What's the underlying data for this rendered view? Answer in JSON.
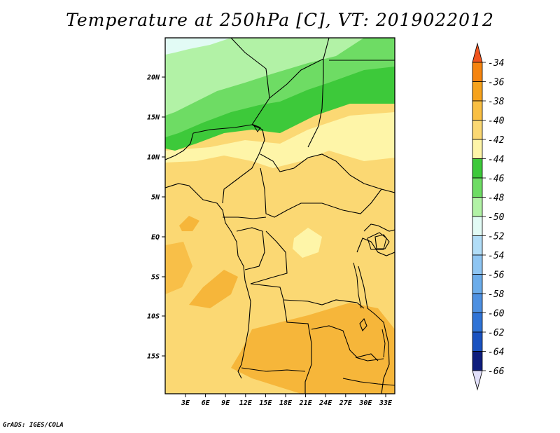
{
  "title": "Temperature at 250hPa [C], VT: 2019022012",
  "credit": "GrADS: IGES/COLA",
  "map": {
    "lat_ticks": [
      "20N",
      "15N",
      "10N",
      "5N",
      "EQ",
      "5S",
      "10S",
      "15S"
    ],
    "lon_ticks": [
      "3E",
      "6E",
      "9E",
      "12E",
      "15E",
      "18E",
      "21E",
      "24E",
      "27E",
      "30E",
      "33E"
    ]
  },
  "colorbar": {
    "labels": [
      "-34",
      "-36",
      "-38",
      "-40",
      "-42",
      "-44",
      "-46",
      "-48",
      "-50",
      "-52",
      "-54",
      "-56",
      "-58",
      "-60",
      "-62",
      "-64",
      "-66"
    ],
    "colors": [
      "#f0541e",
      "#f5840f",
      "#f6a21c",
      "#f9bf42",
      "#fbd873",
      "#fef5a8",
      "#3dc93a",
      "#6edc64",
      "#b2f2a6",
      "#e2fbf5",
      "#b1ddf7",
      "#8ec5f2",
      "#6bacea",
      "#4d90e1",
      "#2f73d6",
      "#1a52c0",
      "#0e1d7d",
      "#e1dffa"
    ]
  }
}
